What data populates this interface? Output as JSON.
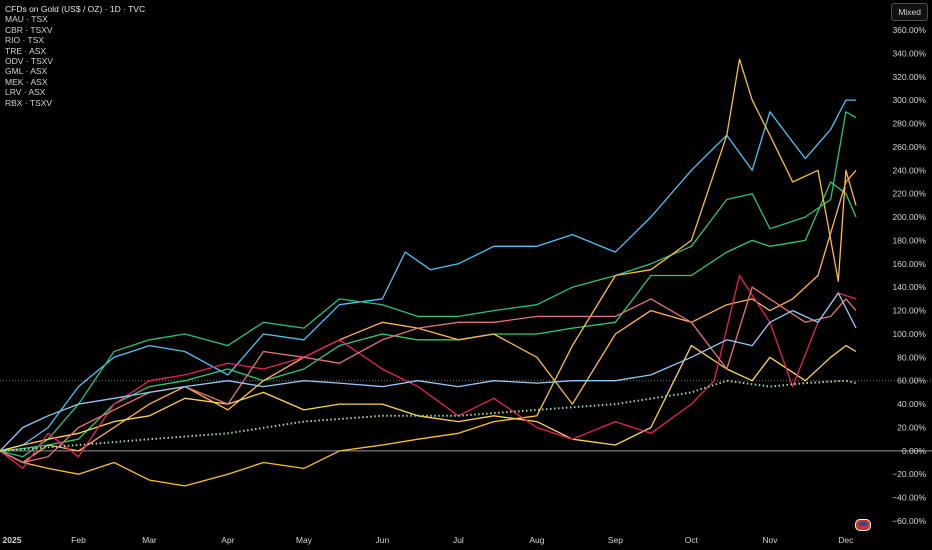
{
  "header": {
    "title": "CFDs on Gold (US$ / OZ) · 1D · TVC",
    "symbols": [
      "MAU · TSX",
      "CBR · TSXV",
      "RIO · TSX",
      "TRE · ASX",
      "ODV · TSXV",
      "GML · ASX",
      "MEK · ASX",
      "LRV · ASX",
      "RBX · TSXV"
    ],
    "mode_button": "Mixed"
  },
  "colors": {
    "background": "#000000",
    "grid_line": "#888888",
    "text": "#d1d4dc"
  },
  "chart_data": {
    "type": "line",
    "title": "CFDs on Gold (US$ / OZ) · 1D · TVC",
    "x_labels": [
      "2025",
      "Feb",
      "Mar",
      "Apr",
      "May",
      "Jun",
      "Jul",
      "Aug",
      "Sep",
      "Oct",
      "Nov",
      "Dec"
    ],
    "x_domain": [
      "2025-01-01",
      "2025-12-05"
    ],
    "y_ticks": [
      "360.00%",
      "340.00%",
      "320.00%",
      "300.00%",
      "280.00%",
      "260.00%",
      "240.00%",
      "220.00%",
      "200.00%",
      "180.00%",
      "160.00%",
      "140.00%",
      "120.00%",
      "100.00%",
      "80.00%",
      "60.00%",
      "40.00%",
      "20.00%",
      "0.00%",
      "−20.00%",
      "−40.00%",
      "−60.00%"
    ],
    "ylim": [
      -60,
      360
    ],
    "reference_lines": [
      0,
      60
    ],
    "series": [
      {
        "color": "#4fc3f7",
        "x": [
          "2025-01-01",
          "2025-01-10",
          "2025-01-20",
          "2025-02-01",
          "2025-02-15",
          "2025-03-01",
          "2025-03-15",
          "2025-04-01",
          "2025-04-15",
          "2025-05-01",
          "2025-05-15",
          "2025-06-01",
          "2025-06-10",
          "2025-06-20",
          "2025-07-01",
          "2025-07-15",
          "2025-08-01",
          "2025-08-15",
          "2025-09-01",
          "2025-09-15",
          "2025-10-01",
          "2025-10-15",
          "2025-10-25",
          "2025-11-01",
          "2025-11-15",
          "2025-11-25",
          "2025-12-01",
          "2025-12-05"
        ],
        "y": [
          0,
          5,
          20,
          55,
          80,
          90,
          85,
          65,
          100,
          95,
          125,
          130,
          170,
          155,
          160,
          175,
          175,
          185,
          170,
          200,
          240,
          270,
          240,
          290,
          250,
          275,
          300,
          300
        ]
      },
      {
        "color": "#26c281",
        "x": [
          "2025-01-01",
          "2025-01-10",
          "2025-01-20",
          "2025-02-01",
          "2025-02-15",
          "2025-03-01",
          "2025-03-15",
          "2025-04-01",
          "2025-04-15",
          "2025-05-01",
          "2025-05-15",
          "2025-06-01",
          "2025-06-15",
          "2025-07-01",
          "2025-07-15",
          "2025-08-01",
          "2025-08-15",
          "2025-09-01",
          "2025-09-15",
          "2025-10-01",
          "2025-10-15",
          "2025-10-25",
          "2025-11-01",
          "2025-11-15",
          "2025-11-25",
          "2025-12-01",
          "2025-12-05"
        ],
        "y": [
          0,
          -5,
          10,
          40,
          85,
          95,
          100,
          90,
          110,
          105,
          130,
          125,
          115,
          115,
          120,
          125,
          140,
          150,
          160,
          175,
          215,
          220,
          190,
          200,
          215,
          290,
          285
        ]
      },
      {
        "color": "#2ecc71",
        "x": [
          "2025-01-01",
          "2025-01-10",
          "2025-01-20",
          "2025-02-01",
          "2025-02-15",
          "2025-03-01",
          "2025-03-15",
          "2025-04-01",
          "2025-04-15",
          "2025-05-01",
          "2025-05-15",
          "2025-06-01",
          "2025-06-15",
          "2025-07-01",
          "2025-07-15",
          "2025-08-01",
          "2025-08-15",
          "2025-09-01",
          "2025-09-15",
          "2025-10-01",
          "2025-10-15",
          "2025-10-25",
          "2025-11-01",
          "2025-11-15",
          "2025-11-25",
          "2025-12-01",
          "2025-12-05"
        ],
        "y": [
          0,
          2,
          5,
          10,
          40,
          55,
          60,
          70,
          60,
          70,
          90,
          100,
          95,
          95,
          100,
          100,
          105,
          110,
          150,
          150,
          170,
          180,
          175,
          180,
          230,
          220,
          200
        ]
      },
      {
        "color": "#fbc02d",
        "x": [
          "2025-01-01",
          "2025-01-10",
          "2025-01-20",
          "2025-02-01",
          "2025-02-15",
          "2025-03-01",
          "2025-03-15",
          "2025-04-01",
          "2025-04-15",
          "2025-05-01",
          "2025-05-15",
          "2025-06-01",
          "2025-06-15",
          "2025-07-01",
          "2025-07-15",
          "2025-08-01",
          "2025-08-15",
          "2025-09-01",
          "2025-09-15",
          "2025-10-01",
          "2025-10-15",
          "2025-10-20",
          "2025-10-25",
          "2025-11-01",
          "2025-11-10",
          "2025-11-20",
          "2025-11-28",
          "2025-12-01",
          "2025-12-05"
        ],
        "y": [
          0,
          -10,
          -15,
          -20,
          -10,
          -25,
          -30,
          -20,
          -10,
          -15,
          0,
          5,
          10,
          15,
          25,
          30,
          90,
          150,
          155,
          180,
          270,
          335,
          300,
          270,
          230,
          240,
          145,
          240,
          210
        ]
      },
      {
        "color": "#ffb74d",
        "x": [
          "2025-01-01",
          "2025-01-10",
          "2025-01-20",
          "2025-02-01",
          "2025-02-15",
          "2025-03-01",
          "2025-03-15",
          "2025-04-01",
          "2025-04-15",
          "2025-05-01",
          "2025-05-15",
          "2025-06-01",
          "2025-06-15",
          "2025-07-01",
          "2025-07-15",
          "2025-08-01",
          "2025-08-15",
          "2025-09-01",
          "2025-09-15",
          "2025-10-01",
          "2025-10-15",
          "2025-10-25",
          "2025-11-01",
          "2025-11-10",
          "2025-11-20",
          "2025-12-01",
          "2025-12-05"
        ],
        "y": [
          0,
          -10,
          5,
          0,
          20,
          40,
          55,
          35,
          60,
          80,
          95,
          110,
          105,
          95,
          100,
          80,
          40,
          100,
          120,
          110,
          125,
          130,
          120,
          130,
          150,
          230,
          240
        ]
      },
      {
        "color": "#ffd54f",
        "x": [
          "2025-01-01",
          "2025-01-10",
          "2025-01-20",
          "2025-02-01",
          "2025-02-15",
          "2025-03-01",
          "2025-03-15",
          "2025-04-01",
          "2025-04-15",
          "2025-05-01",
          "2025-05-15",
          "2025-06-01",
          "2025-06-15",
          "2025-07-01",
          "2025-07-15",
          "2025-08-01",
          "2025-08-15",
          "2025-09-01",
          "2025-09-15",
          "2025-10-01",
          "2025-10-15",
          "2025-10-25",
          "2025-11-01",
          "2025-11-15",
          "2025-11-25",
          "2025-12-01",
          "2025-12-05"
        ],
        "y": [
          0,
          5,
          10,
          15,
          25,
          30,
          45,
          40,
          50,
          35,
          40,
          40,
          30,
          25,
          30,
          25,
          10,
          5,
          20,
          90,
          70,
          60,
          80,
          60,
          80,
          90,
          85
        ]
      },
      {
        "color": "#e91e63",
        "x": [
          "2025-01-01",
          "2025-01-10",
          "2025-01-20",
          "2025-02-01",
          "2025-02-15",
          "2025-03-01",
          "2025-03-15",
          "2025-04-01",
          "2025-04-15",
          "2025-05-01",
          "2025-05-15",
          "2025-06-01",
          "2025-06-15",
          "2025-07-01",
          "2025-07-15",
          "2025-08-01",
          "2025-08-15",
          "2025-09-01",
          "2025-09-15",
          "2025-10-01",
          "2025-10-10",
          "2025-10-20",
          "2025-11-01",
          "2025-11-10",
          "2025-11-20",
          "2025-11-28",
          "2025-12-05"
        ],
        "y": [
          0,
          -15,
          15,
          -5,
          40,
          60,
          65,
          75,
          70,
          80,
          95,
          70,
          55,
          30,
          45,
          20,
          10,
          25,
          15,
          40,
          60,
          150,
          110,
          55,
          110,
          135,
          130
        ]
      },
      {
        "color": "#e57373",
        "x": [
          "2025-01-01",
          "2025-01-10",
          "2025-01-20",
          "2025-02-01",
          "2025-02-15",
          "2025-03-01",
          "2025-03-15",
          "2025-04-01",
          "2025-04-15",
          "2025-05-01",
          "2025-05-15",
          "2025-06-01",
          "2025-06-15",
          "2025-07-01",
          "2025-07-15",
          "2025-08-01",
          "2025-08-15",
          "2025-09-01",
          "2025-09-15",
          "2025-10-01",
          "2025-10-15",
          "2025-10-25",
          "2025-11-01",
          "2025-11-15",
          "2025-11-25",
          "2025-12-01",
          "2025-12-05"
        ],
        "y": [
          0,
          -10,
          -5,
          20,
          35,
          50,
          55,
          40,
          85,
          80,
          75,
          95,
          105,
          110,
          110,
          115,
          115,
          115,
          130,
          110,
          70,
          140,
          130,
          110,
          115,
          130,
          120
        ]
      },
      {
        "color": "#90caf9",
        "x": [
          "2025-01-01",
          "2025-01-10",
          "2025-01-20",
          "2025-02-01",
          "2025-02-15",
          "2025-03-01",
          "2025-03-15",
          "2025-04-01",
          "2025-04-15",
          "2025-05-01",
          "2025-05-15",
          "2025-06-01",
          "2025-06-15",
          "2025-07-01",
          "2025-07-15",
          "2025-08-01",
          "2025-08-15",
          "2025-09-01",
          "2025-09-15",
          "2025-10-01",
          "2025-10-15",
          "2025-10-25",
          "2025-11-01",
          "2025-11-10",
          "2025-11-20",
          "2025-11-28",
          "2025-12-05"
        ],
        "y": [
          0,
          20,
          30,
          40,
          45,
          50,
          55,
          60,
          55,
          60,
          58,
          55,
          60,
          55,
          60,
          58,
          60,
          60,
          65,
          80,
          95,
          90,
          110,
          120,
          110,
          135,
          105
        ]
      },
      {
        "color": "#9bd7a8",
        "dotted": true,
        "x": [
          "2025-01-01",
          "2025-02-01",
          "2025-03-01",
          "2025-04-01",
          "2025-05-01",
          "2025-06-01",
          "2025-07-01",
          "2025-08-01",
          "2025-09-01",
          "2025-10-01",
          "2025-10-15",
          "2025-11-01",
          "2025-11-15",
          "2025-12-01",
          "2025-12-05"
        ],
        "y": [
          0,
          5,
          10,
          15,
          25,
          30,
          30,
          35,
          40,
          50,
          60,
          55,
          58,
          60,
          58
        ]
      }
    ]
  }
}
